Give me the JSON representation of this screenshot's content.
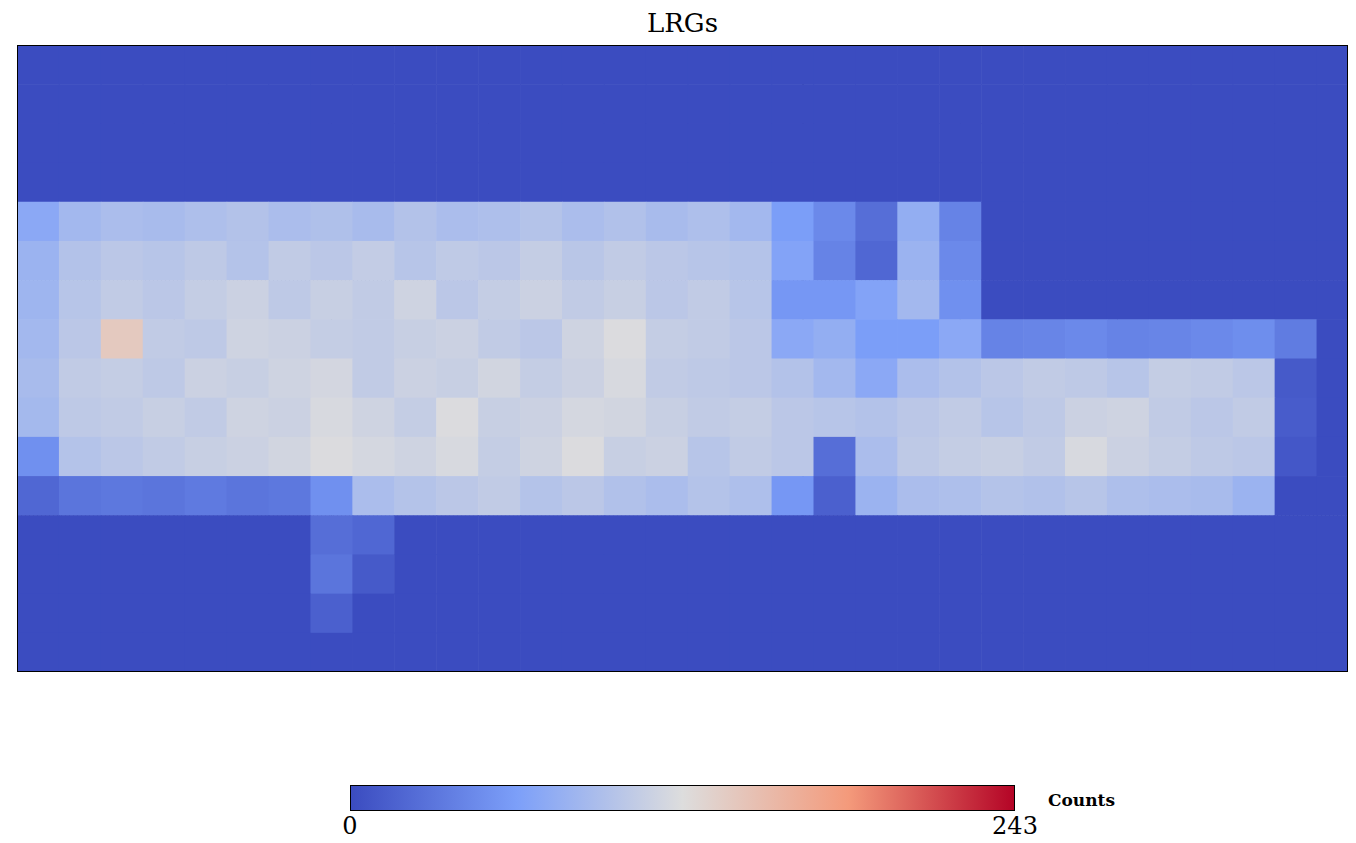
{
  "chart_data": {
    "type": "heatmap",
    "title": "LRGs",
    "xlim": [
      -150,
      104
    ],
    "ylim": [
      -20,
      60
    ],
    "xticks": [
      -120,
      -90,
      -60,
      -30,
      0,
      30,
      60,
      90
    ],
    "yticks": [
      0,
      30
    ],
    "grid": true,
    "tick_labels": false,
    "vline": 0,
    "x": [
      -146,
      -138,
      -130,
      -122,
      -114,
      -106,
      -98,
      -90,
      -82,
      -74,
      -66,
      -58,
      -50,
      -42,
      -34,
      -26,
      -18,
      -10,
      -2,
      6,
      14,
      22,
      30,
      38,
      46,
      54,
      62,
      70,
      78,
      86,
      94,
      102
    ],
    "y": [
      57.5,
      52.5,
      47.5,
      42.5,
      37.5,
      32.5,
      27.5,
      22.5,
      17.5,
      12.5,
      7.5,
      2.5,
      -2.5,
      -7.5,
      -12.5,
      -17.5
    ],
    "cells": [
      [
        0,
        0,
        0,
        0,
        0,
        0,
        0,
        0,
        0,
        0,
        0,
        0,
        0,
        0,
        0,
        0,
        0,
        0,
        0,
        0,
        0,
        0,
        0,
        0,
        0,
        0,
        0,
        0,
        0,
        0,
        0,
        0
      ],
      [
        0,
        0,
        0,
        0,
        0,
        0,
        0,
        0,
        0,
        0,
        0,
        0,
        0,
        0,
        0,
        0,
        0,
        0,
        0,
        0,
        0,
        0,
        0,
        0,
        0,
        0,
        0,
        0,
        0,
        0,
        0,
        0
      ],
      [
        0,
        0,
        0,
        0,
        0,
        0,
        0,
        0,
        0,
        0,
        0,
        0,
        0,
        0,
        0,
        0,
        0,
        0,
        0,
        0,
        0,
        0,
        0,
        0,
        0,
        0,
        0,
        0,
        0,
        0,
        0,
        0
      ],
      [
        0,
        0,
        0,
        0,
        0,
        0,
        0,
        0,
        0,
        0,
        0,
        0,
        0,
        0,
        0,
        0,
        0,
        0,
        0,
        0,
        0,
        0,
        0,
        0,
        0,
        0,
        0,
        0,
        0,
        0,
        0,
        0
      ],
      [
        70,
        85,
        90,
        88,
        92,
        95,
        90,
        93,
        88,
        95,
        90,
        92,
        96,
        90,
        94,
        88,
        92,
        85,
        60,
        45,
        25,
        75,
        40,
        0,
        0,
        0,
        0,
        0,
        0,
        0,
        0,
        0
      ],
      [
        80,
        95,
        100,
        98,
        102,
        96,
        104,
        100,
        105,
        98,
        103,
        100,
        106,
        99,
        104,
        100,
        98,
        96,
        65,
        40,
        20,
        80,
        45,
        0,
        0,
        0,
        0,
        0,
        0,
        0,
        0,
        0
      ],
      [
        82,
        98,
        104,
        100,
        106,
        110,
        102,
        108,
        104,
        112,
        100,
        106,
        110,
        104,
        108,
        100,
        104,
        98,
        55,
        55,
        65,
        85,
        50,
        0,
        0,
        0,
        0,
        0,
        0,
        0,
        0,
        0
      ],
      [
        85,
        100,
        140,
        104,
        102,
        112,
        110,
        106,
        104,
        108,
        110,
        104,
        100,
        112,
        120,
        106,
        104,
        100,
        70,
        75,
        60,
        60,
        70,
        40,
        42,
        45,
        40,
        42,
        45,
        48,
        35,
        0
      ],
      [
        88,
        104,
        106,
        102,
        110,
        108,
        112,
        115,
        104,
        110,
        108,
        114,
        106,
        110,
        118,
        104,
        102,
        100,
        95,
        85,
        70,
        90,
        95,
        100,
        104,
        102,
        98,
        106,
        104,
        100,
        10,
        0
      ],
      [
        86,
        102,
        104,
        108,
        104,
        112,
        110,
        118,
        112,
        106,
        120,
        108,
        110,
        116,
        114,
        108,
        104,
        106,
        100,
        98,
        95,
        100,
        104,
        98,
        102,
        110,
        112,
        104,
        100,
        104,
        12,
        0
      ],
      [
        50,
        96,
        100,
        104,
        108,
        110,
        114,
        120,
        116,
        112,
        118,
        106,
        112,
        120,
        108,
        110,
        98,
        104,
        100,
        25,
        90,
        102,
        106,
        108,
        104,
        118,
        110,
        106,
        102,
        100,
        8,
        0
      ],
      [
        20,
        30,
        32,
        30,
        34,
        30,
        32,
        50,
        90,
        96,
        100,
        104,
        96,
        100,
        94,
        90,
        96,
        92,
        55,
        15,
        80,
        90,
        92,
        96,
        94,
        98,
        92,
        90,
        88,
        80,
        0,
        0
      ],
      [
        0,
        0,
        0,
        0,
        0,
        0,
        0,
        25,
        20,
        0,
        0,
        0,
        0,
        0,
        0,
        0,
        0,
        0,
        0,
        0,
        0,
        0,
        0,
        0,
        0,
        0,
        0,
        0,
        0,
        0,
        0,
        0
      ],
      [
        0,
        0,
        0,
        0,
        0,
        0,
        0,
        30,
        10,
        0,
        0,
        0,
        0,
        0,
        0,
        0,
        0,
        0,
        0,
        0,
        0,
        0,
        0,
        0,
        0,
        0,
        0,
        0,
        0,
        0,
        0,
        0
      ],
      [
        0,
        0,
        0,
        0,
        0,
        0,
        0,
        15,
        0,
        0,
        0,
        0,
        0,
        0,
        0,
        0,
        0,
        0,
        0,
        0,
        0,
        0,
        0,
        0,
        0,
        0,
        0,
        0,
        0,
        0,
        0,
        0
      ],
      [
        0,
        0,
        0,
        0,
        0,
        0,
        0,
        0,
        0,
        0,
        0,
        0,
        0,
        0,
        0,
        0,
        0,
        0,
        0,
        0,
        0,
        0,
        0,
        0,
        0,
        0,
        0,
        0,
        0,
        0,
        0,
        0
      ]
    ],
    "colorbar": {
      "label": "Counts",
      "range": [
        0,
        243
      ],
      "ticks": [
        0,
        243
      ]
    }
  }
}
